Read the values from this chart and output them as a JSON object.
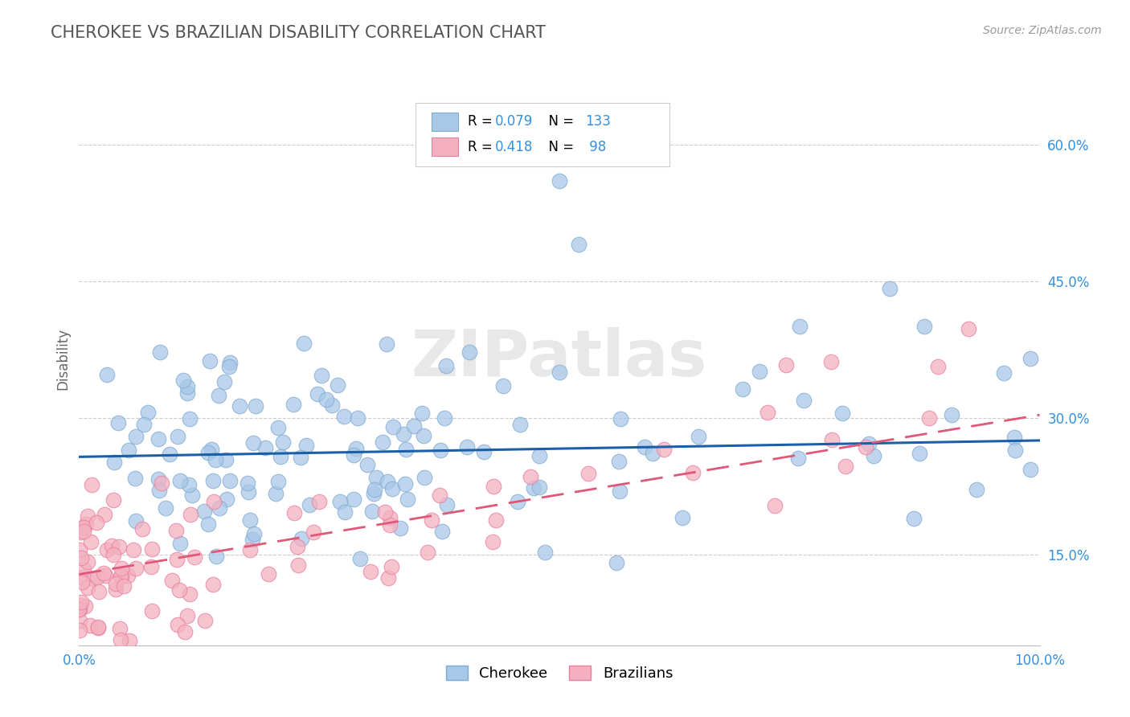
{
  "title": "CHEROKEE VS BRAZILIAN DISABILITY CORRELATION CHART",
  "source": "Source: ZipAtlas.com",
  "ylabel": "Disability",
  "xlim": [
    0.0,
    1.0
  ],
  "ylim": [
    0.05,
    0.68
  ],
  "yticks": [
    0.15,
    0.3,
    0.45,
    0.6
  ],
  "ytick_labels": [
    "15.0%",
    "30.0%",
    "45.0%",
    "60.0%"
  ],
  "xticks": [
    0.0,
    1.0
  ],
  "xtick_labels": [
    "0.0%",
    "100.0%"
  ],
  "cherokee_color": "#a8c8e8",
  "cherokee_edge": "#80aad0",
  "brazilian_color": "#f4b0c0",
  "brazilian_edge": "#e880a0",
  "cherokee_R": 0.079,
  "cherokee_N": 133,
  "brazilian_R": 0.418,
  "brazilian_N": 98,
  "trend_cherokee_color": "#1a5fa8",
  "trend_brazilian_color": "#e05878",
  "legend_R_color": "#3390e0",
  "tick_color": "#3390e0",
  "title_color": "#555555",
  "source_color": "#999999",
  "background_color": "#ffffff",
  "watermark": "ZIPatlas",
  "cherokee_trend_intercept": 0.257,
  "cherokee_trend_slope": 0.018,
  "brazilian_trend_intercept": 0.128,
  "brazilian_trend_slope": 0.175
}
